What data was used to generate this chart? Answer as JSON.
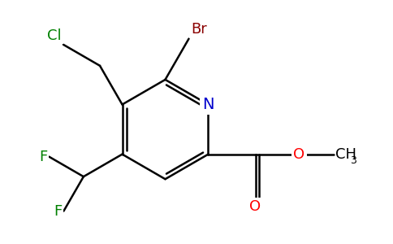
{
  "bg_color": "#ffffff",
  "bond_color": "#000000",
  "atom_colors": {
    "N": "#0000cc",
    "Br": "#8b0000",
    "Cl": "#008000",
    "F": "#008000",
    "O": "#ff0000",
    "C": "#000000"
  },
  "lw": 1.8,
  "figsize": [
    4.84,
    3.0
  ],
  "dpi": 100
}
